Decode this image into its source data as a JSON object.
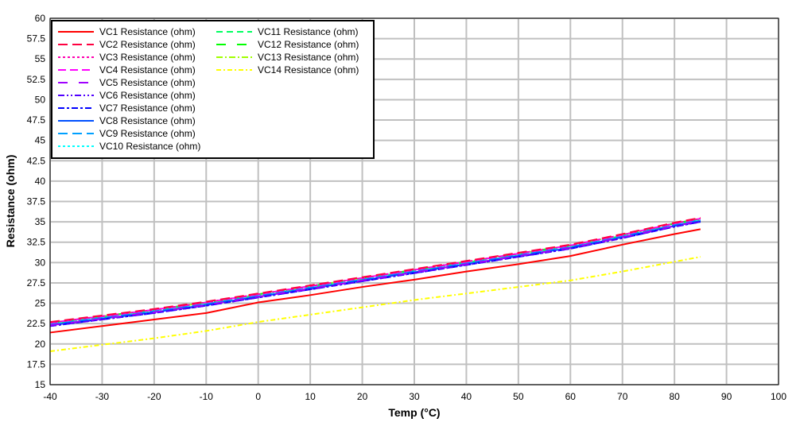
{
  "chart_data": {
    "type": "line",
    "xlabel": "Temp (°C)",
    "ylabel": "Resistance (ohm)",
    "xlim": [
      -40,
      100
    ],
    "ylim": [
      15,
      60
    ],
    "xticks": [
      -40,
      -30,
      -20,
      -10,
      0,
      10,
      20,
      30,
      40,
      50,
      60,
      70,
      80,
      90,
      100
    ],
    "yticks": [
      "15",
      "17.5",
      "20",
      "22.5",
      "25",
      "27.5",
      "30",
      "32.5",
      "35",
      "37.5",
      "40",
      "42.5",
      "45",
      "47.5",
      "50",
      "52.5",
      "55",
      "57.5",
      "60"
    ],
    "grid": true,
    "legend_position": "top-left",
    "x": [
      -40,
      -30,
      -20,
      -10,
      0,
      10,
      20,
      30,
      40,
      50,
      60,
      70,
      80,
      85
    ],
    "series": [
      {
        "name": "VC1 Resistance (ohm)",
        "color": "#ff0000",
        "dash": "",
        "values": [
          21.4,
          22.2,
          23.0,
          23.8,
          25.1,
          26.0,
          27.0,
          27.9,
          28.9,
          29.8,
          30.8,
          32.2,
          33.5,
          34.1
        ]
      },
      {
        "name": "VC2 Resistance (ohm)",
        "color": "#ff0040",
        "dash": "12,6",
        "values": [
          22.7,
          23.5,
          24.3,
          25.2,
          26.2,
          27.2,
          28.2,
          29.2,
          30.2,
          31.2,
          32.2,
          33.5,
          34.9,
          35.5
        ]
      },
      {
        "name": "VC3 Resistance (ohm)",
        "color": "#ff00b0",
        "dash": "3,3",
        "values": [
          22.6,
          23.4,
          24.2,
          25.1,
          26.1,
          27.1,
          28.1,
          29.1,
          30.1,
          31.1,
          32.1,
          33.4,
          34.8,
          35.4
        ]
      },
      {
        "name": "VC4 Resistance (ohm)",
        "color": "#ff00ff",
        "dash": "10,5",
        "values": [
          22.6,
          23.4,
          24.2,
          25.1,
          26.1,
          27.1,
          28.1,
          29.1,
          30.1,
          31.1,
          32.1,
          33.4,
          34.8,
          35.4
        ]
      },
      {
        "name": "VC5 Resistance (ohm)",
        "color": "#a000ff",
        "dash": "12,14",
        "values": [
          22.3,
          23.1,
          23.9,
          24.8,
          25.8,
          26.8,
          27.8,
          28.8,
          29.8,
          30.8,
          31.8,
          33.1,
          34.5,
          35.1
        ]
      },
      {
        "name": "VC6 Resistance (ohm)",
        "color": "#5000ff",
        "dash": "8,3,2,3,2,3",
        "values": [
          22.2,
          23.0,
          23.8,
          24.7,
          25.7,
          26.7,
          27.7,
          28.7,
          29.7,
          30.7,
          31.7,
          33.0,
          34.4,
          35.0
        ]
      },
      {
        "name": "VC7 Resistance (ohm)",
        "color": "#0000ff",
        "dash": "8,3,3,3",
        "values": [
          22.2,
          23.0,
          23.8,
          24.7,
          25.7,
          26.7,
          27.7,
          28.7,
          29.7,
          30.7,
          31.7,
          33.0,
          34.4,
          35.0
        ]
      },
      {
        "name": "VC8 Resistance (ohm)",
        "color": "#0050ff",
        "dash": "",
        "values": [
          22.3,
          23.1,
          23.9,
          24.8,
          25.8,
          26.8,
          27.8,
          28.8,
          29.8,
          30.8,
          31.8,
          33.1,
          34.5,
          35.1
        ]
      },
      {
        "name": "VC9 Resistance (ohm)",
        "color": "#00a0ff",
        "dash": "12,6",
        "values": [
          22.4,
          23.2,
          24.0,
          24.9,
          25.9,
          26.9,
          27.9,
          28.9,
          29.9,
          30.9,
          31.9,
          33.2,
          34.6,
          35.2
        ]
      },
      {
        "name": "VC10 Resistance (ohm)",
        "color": "#00ffff",
        "dash": "3,3",
        "values": [
          22.5,
          23.3,
          24.1,
          25.0,
          26.0,
          27.0,
          28.0,
          29.0,
          30.0,
          31.0,
          32.0,
          33.3,
          34.7,
          35.3
        ]
      },
      {
        "name": "VC11 Resistance (ohm)",
        "color": "#00ff60",
        "dash": "8,5",
        "values": [
          22.5,
          23.3,
          24.1,
          25.0,
          26.0,
          27.0,
          28.0,
          29.0,
          30.0,
          31.0,
          32.0,
          33.3,
          34.7,
          35.3
        ]
      },
      {
        "name": "VC12 Resistance (ohm)",
        "color": "#00ff00",
        "dash": "12,14",
        "values": [
          22.6,
          23.4,
          24.2,
          25.1,
          26.1,
          27.1,
          28.1,
          29.1,
          30.1,
          31.1,
          32.1,
          33.4,
          34.8,
          35.4
        ]
      },
      {
        "name": "VC13 Resistance (ohm)",
        "color": "#a0ff00",
        "dash": "8,3,2,3",
        "values": [
          22.6,
          23.4,
          24.2,
          25.1,
          26.1,
          27.1,
          28.1,
          29.1,
          30.1,
          31.1,
          32.1,
          33.4,
          34.8,
          35.4
        ]
      },
      {
        "name": "VC14 Resistance (ohm)",
        "color": "#ffff00",
        "dash": "6,3,2,3",
        "values": [
          19.1,
          19.9,
          20.7,
          21.6,
          22.7,
          23.6,
          24.5,
          25.4,
          26.2,
          27.0,
          27.8,
          28.9,
          30.1,
          30.7
        ]
      }
    ]
  }
}
